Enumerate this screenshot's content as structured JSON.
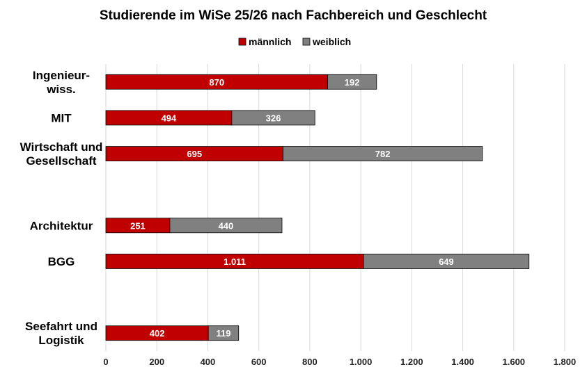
{
  "chart_data": {
    "type": "bar",
    "orientation": "horizontal",
    "stacked": true,
    "title": "Studierende im WiSe 25/26 nach Fachbereich und Geschlecht",
    "categories": [
      [
        "Ingenieur-",
        "wiss."
      ],
      [
        "MIT"
      ],
      [
        "Wirtschaft und",
        "Gesellschaft"
      ],
      [],
      [
        "Architektur"
      ],
      [
        "BGG"
      ],
      [],
      [
        "Seefahrt und",
        "Logistik"
      ]
    ],
    "series": [
      {
        "name": "männlich",
        "color": "#c00000",
        "values": [
          870,
          494,
          695,
          null,
          251,
          1011,
          null,
          402
        ],
        "labels": [
          "870",
          "494",
          "695",
          "",
          "251",
          "1.011",
          "",
          "402"
        ]
      },
      {
        "name": "weiblich",
        "color": "#808080",
        "values": [
          192,
          326,
          782,
          null,
          440,
          649,
          null,
          119
        ],
        "labels": [
          "192",
          "326",
          "782",
          "",
          "440",
          "649",
          "",
          "119"
        ]
      }
    ],
    "xlim": [
      0,
      1800
    ],
    "xticks": [
      0,
      200,
      400,
      600,
      800,
      1000,
      1200,
      1400,
      1600,
      1800
    ],
    "xtick_labels": [
      "0",
      "200",
      "400",
      "600",
      "800",
      "1.000",
      "1.200",
      "1.400",
      "1.600",
      "1.800"
    ],
    "grid": true,
    "legend": "top-center",
    "xlabel": "",
    "ylabel": ""
  }
}
